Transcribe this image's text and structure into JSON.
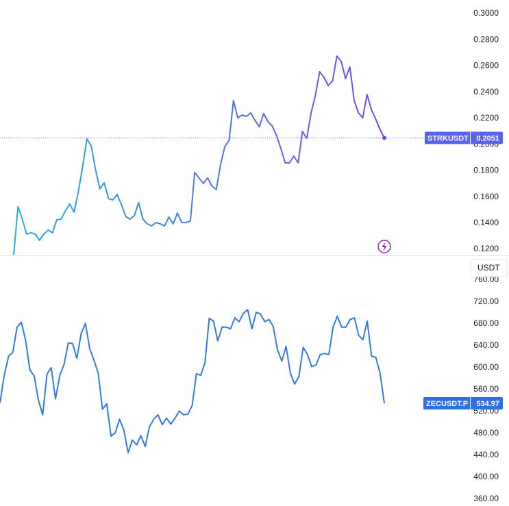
{
  "chart_data": [
    {
      "type": "line",
      "series": [
        {
          "name": "STRKUSDT",
          "colors": [
            "#1fb0d8",
            "#7b43ea"
          ],
          "values": [
            0.1158,
            0.1525,
            0.143,
            0.1315,
            0.1326,
            0.1315,
            0.1268,
            0.1315,
            0.1347,
            0.1326,
            0.1425,
            0.143,
            0.1493,
            0.1546,
            0.1483,
            0.164,
            0.1834,
            0.2043,
            0.199,
            0.1807,
            0.1661,
            0.1708,
            0.1587,
            0.1577,
            0.1619,
            0.154,
            0.1451,
            0.143,
            0.1457,
            0.1556,
            0.143,
            0.1394,
            0.1378,
            0.1404,
            0.1394,
            0.1378,
            0.1446,
            0.1394,
            0.1477,
            0.1404,
            0.1404,
            0.1415,
            0.1786,
            0.1745,
            0.1703,
            0.1745,
            0.1682,
            0.1656,
            0.1849,
            0.1985,
            0.2032,
            0.2336,
            0.2205,
            0.2226,
            0.2216,
            0.2242,
            0.2184,
            0.2137,
            0.2237,
            0.2174,
            0.2142,
            0.2069,
            0.197,
            0.186,
            0.186,
            0.1912,
            0.186,
            0.2101,
            0.2048,
            0.2242,
            0.2373,
            0.2556,
            0.2514,
            0.2451,
            0.2488,
            0.2677,
            0.2635,
            0.2504,
            0.2593,
            0.2336,
            0.2242,
            0.2205,
            0.2383,
            0.2268,
            0.2195,
            0.2116,
            0.2051
          ]
        }
      ],
      "ylim": [
        0.1153,
        0.3105
      ],
      "yticks": [
        {
          "value": 0.12,
          "label": "0.1200"
        },
        {
          "value": 0.14,
          "label": "0.1400"
        },
        {
          "value": 0.16,
          "label": "0.1600"
        },
        {
          "value": 0.18,
          "label": "0.1800"
        },
        {
          "value": 0.2,
          "label": "0.2000"
        },
        {
          "value": 0.22,
          "label": "0.2200"
        },
        {
          "value": 0.24,
          "label": "0.2400"
        },
        {
          "value": 0.26,
          "label": "0.2600"
        },
        {
          "value": 0.28,
          "label": "0.2800"
        },
        {
          "value": 0.3,
          "label": "0.3000"
        }
      ],
      "badge_color": "#5b63ee"
    },
    {
      "type": "line",
      "currency": "USDT",
      "series": [
        {
          "name": "ZECUSDT.P",
          "colors": [
            "#3179e2",
            "#3179e2"
          ],
          "values": [
            536,
            586,
            621,
            628,
            674,
            683,
            650,
            596,
            585,
            541,
            514,
            588,
            600,
            543,
            586,
            606,
            645,
            644,
            617,
            662,
            681,
            635,
            614,
            590,
            524,
            534,
            475,
            481,
            506,
            486,
            445,
            468,
            459,
            476,
            456,
            492,
            506,
            514,
            496,
            508,
            497,
            508,
            521,
            514,
            515,
            531,
            589,
            586,
            609,
            690,
            685,
            649,
            674,
            674,
            671,
            691,
            684,
            699,
            706,
            671,
            701,
            698,
            684,
            688,
            675,
            632,
            612,
            639,
            590,
            570,
            584,
            637,
            624,
            602,
            605,
            624,
            626,
            624,
            674,
            694,
            674,
            674,
            688,
            691,
            659,
            651,
            685,
            621,
            619,
            590,
            534.97
          ]
        }
      ],
      "ylim": [
        347.5,
        803.75
      ],
      "yticks": [
        {
          "value": 360,
          "label": "360.00"
        },
        {
          "value": 400,
          "label": "400.00"
        },
        {
          "value": 440,
          "label": "440.00"
        },
        {
          "value": 480,
          "label": "480.00"
        },
        {
          "value": 520,
          "label": "520.00"
        },
        {
          "value": 560,
          "label": "560.00"
        },
        {
          "value": 600,
          "label": "600.00"
        },
        {
          "value": 640,
          "label": "640.00"
        },
        {
          "value": 680,
          "label": "680.00"
        },
        {
          "value": 720,
          "label": "720.00"
        },
        {
          "value": 760,
          "label": "760.00"
        }
      ],
      "badge_color": "#2f6fe6"
    }
  ]
}
